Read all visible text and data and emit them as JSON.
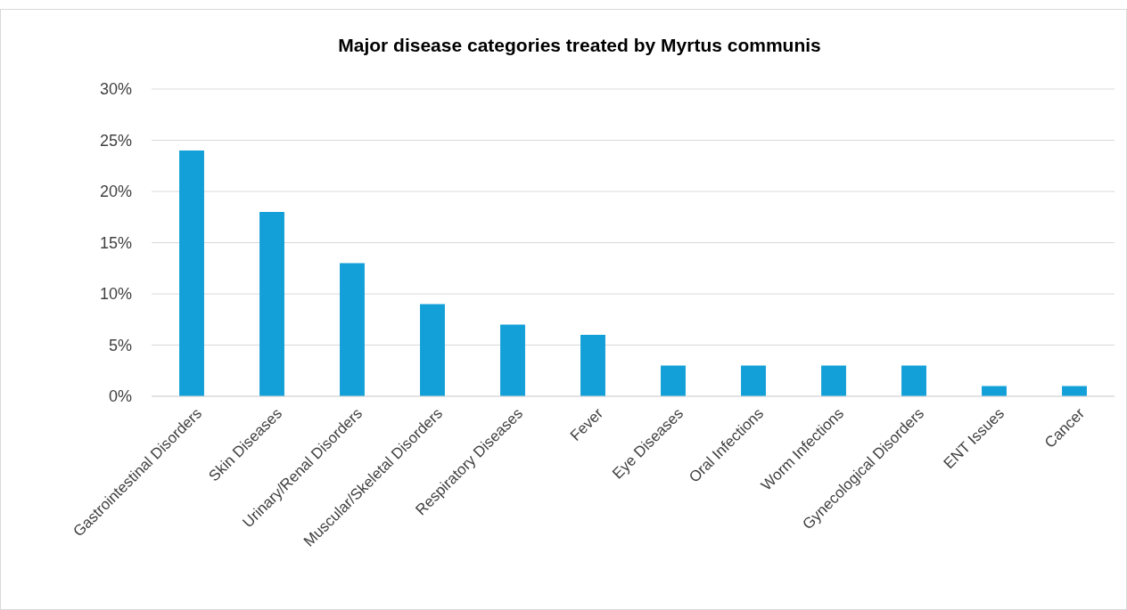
{
  "chart_data": {
    "type": "bar",
    "title": "Major disease categories treated by Myrtus communis",
    "categories": [
      "Gastrointestinal Disorders",
      "Skin Diseases",
      "Urinary/Renal Disorders",
      "Muscular/Skeletal Disorders",
      "Respiratory Diseases",
      "Fever",
      "Eye Diseases",
      "Oral Infections",
      "Worm Infections",
      "Gynecological Disorders",
      "ENT Issues",
      "Cancer"
    ],
    "values": [
      24,
      18,
      13,
      9,
      7,
      6,
      3,
      3,
      3,
      3,
      1,
      1
    ],
    "color": "#13a0d8",
    "ylim": [
      0,
      30
    ],
    "yticks": [
      {
        "value": 0,
        "label": "0%"
      },
      {
        "value": 5,
        "label": "5%"
      },
      {
        "value": 10,
        "label": "10%"
      },
      {
        "value": 15,
        "label": "15%"
      },
      {
        "value": 20,
        "label": "20%"
      },
      {
        "value": 25,
        "label": "25%"
      },
      {
        "value": 30,
        "label": "30%"
      }
    ],
    "grid": "y"
  }
}
